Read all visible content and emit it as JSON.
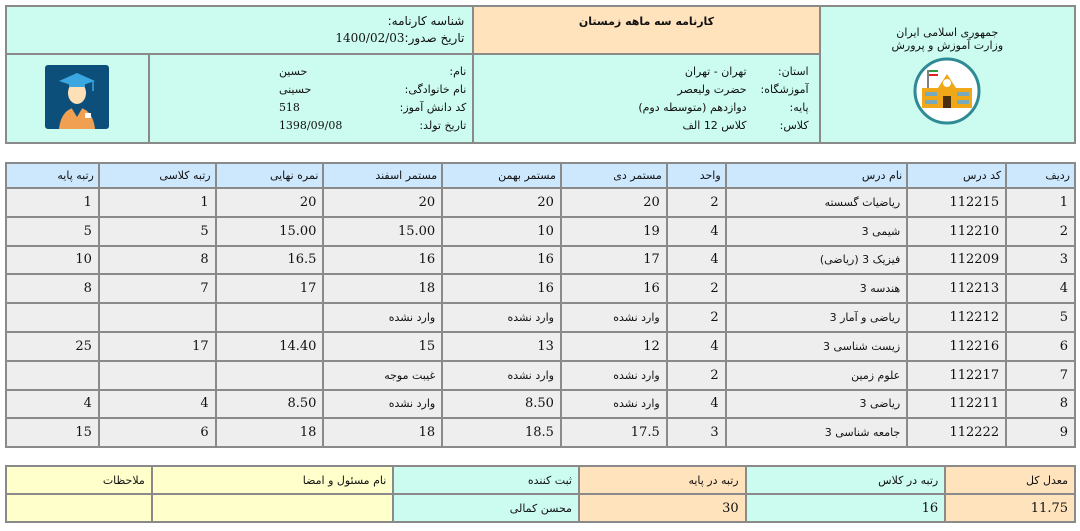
{
  "header": {
    "org_line1": "جمهوری اسلامی ایران",
    "org_line2": "وزارت آموزش و پرورش",
    "logo_icon": "school-building-icon",
    "title": "کارنامه سه ماهه زمستان",
    "report_id_label": "شناسه کارنامه:",
    "report_id_value": "",
    "issue_date_label": "تاریخ صدور:",
    "issue_date_value": "1400/02/03",
    "school": {
      "province_label": "استان:",
      "province_value": "تهران - تهران",
      "school_label": "آموزشگاه:",
      "school_value": "حضرت ولیعصر",
      "grade_label": "پایه:",
      "grade_value": "دوازدهم (متوسطه دوم)",
      "class_label": "کلاس:",
      "class_value": "کلاس 12 الف"
    },
    "student": {
      "name_label": "نام:",
      "name_value": "حسین",
      "family_label": "نام خانوادگی:",
      "family_value": "حسینی",
      "code_label": "کد دانش آموز:",
      "code_value": "518",
      "birth_label": "تاریخ تولد:",
      "birth_value": "1398/09/08"
    },
    "photo_icon": "student-graduate-avatar-icon"
  },
  "grades": {
    "columns": [
      "ردیف",
      "کد درس",
      "نام درس",
      "واحد",
      "مستمر دی",
      "مستمر بهمن",
      "مستمر اسفند",
      "نمره نهایی",
      "رتبه کلاسی",
      "رتبه پایه"
    ],
    "rows": [
      [
        "1",
        "112215",
        "ریاضیات گسسته",
        "2",
        "20",
        "20",
        "20",
        "20",
        "1",
        "1"
      ],
      [
        "2",
        "112210",
        "شیمی 3",
        "4",
        "19",
        "10",
        "15.00",
        "15.00",
        "5",
        "5"
      ],
      [
        "3",
        "112209",
        "فیزیک 3 (ریاضی)",
        "4",
        "17",
        "16",
        "16",
        "16.5",
        "8",
        "10"
      ],
      [
        "4",
        "112213",
        "هندسه 3",
        "2",
        "16",
        "16",
        "18",
        "17",
        "7",
        "8"
      ],
      [
        "5",
        "112212",
        "ریاضی و آمار 3",
        "2",
        "وارد نشده",
        "وارد نشده",
        "وارد نشده",
        "",
        "",
        ""
      ],
      [
        "6",
        "112216",
        "زیست شناسی 3",
        "4",
        "12",
        "13",
        "15",
        "14.40",
        "17",
        "25"
      ],
      [
        "7",
        "112217",
        "علوم زمین",
        "2",
        "وارد نشده",
        "وارد نشده",
        "غیبت موجه",
        "",
        "",
        ""
      ],
      [
        "8",
        "112211",
        "ریاضی 3",
        "4",
        "وارد نشده",
        "8.50",
        "وارد نشده",
        "8.50",
        "4",
        "4"
      ],
      [
        "9",
        "112222",
        "جامعه شناسی 3",
        "3",
        "17.5",
        "18.5",
        "18",
        "18",
        "6",
        "15"
      ]
    ]
  },
  "summary": {
    "headers": [
      "معدل کل",
      "رتبه در کلاس",
      "رتبه در پایه",
      "ثبت کننده",
      "نام مسئول و امضا",
      "ملاحظات"
    ],
    "values": [
      "11.75",
      "16",
      "30",
      "محسن کمالی",
      "",
      ""
    ]
  },
  "colors": {
    "mint": "#ccfcef",
    "orange": "#ffe3bd",
    "header_blue": "#cde7fd",
    "yellow": "#ffffcc",
    "row_gray": "#eeeeee"
  }
}
